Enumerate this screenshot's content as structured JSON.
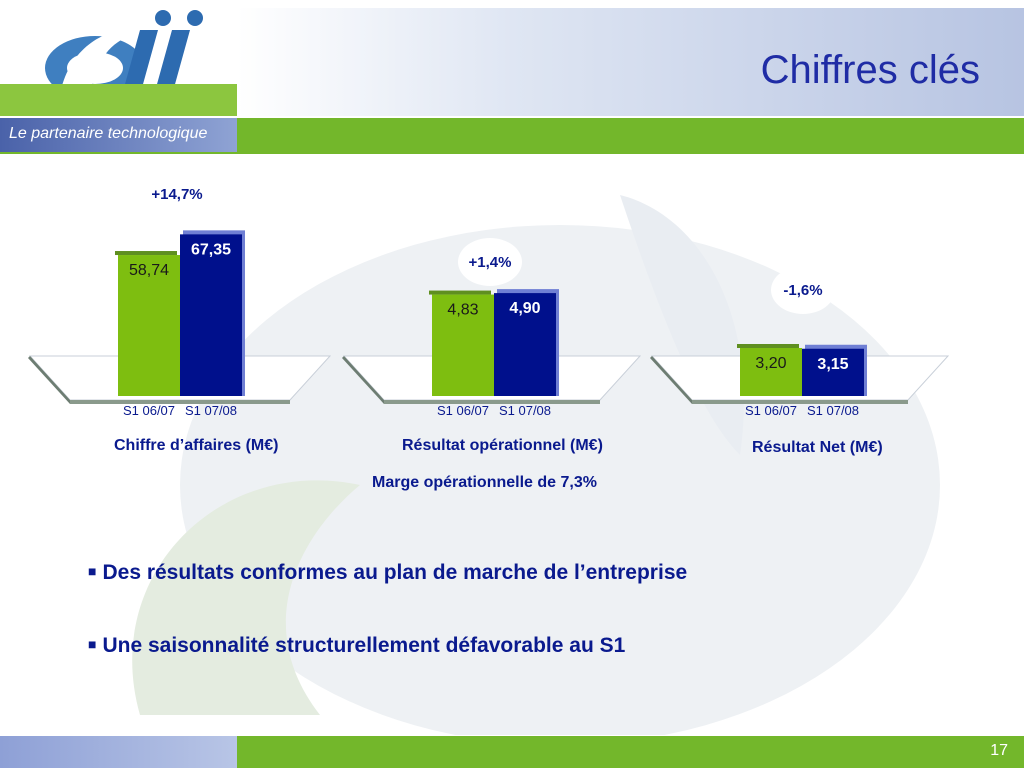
{
  "header": {
    "title": "Chiffres clés",
    "tagline": "Le partenaire technologique",
    "logo_text": "SII"
  },
  "colors": {
    "prev_bar": "#7ebe10",
    "curr_bar": "#00108c",
    "bar_shadow": "#6f7fd4",
    "title": "#1f2ca5",
    "text": "#0a1a8e",
    "brand_green": "#73b72b"
  },
  "chart_data": [
    {
      "type": "bar",
      "categories": [
        "S1 06/07",
        "S1 07/08"
      ],
      "values": [
        58.74,
        67.35
      ],
      "value_labels": [
        "58,74",
        "67,35"
      ],
      "change_label": "+14,7%",
      "title": "Chiffre d’affaires (M€)"
    },
    {
      "type": "bar",
      "categories": [
        "S1 06/07",
        "S1 07/08"
      ],
      "values": [
        4.83,
        4.9
      ],
      "value_labels": [
        "4,83",
        "4,90"
      ],
      "change_label": "+1,4%",
      "title": "Résultat opérationnel (M€)",
      "subtitle": "Marge opérationnelle de 7,3%"
    },
    {
      "type": "bar",
      "categories": [
        "S1 06/07",
        "S1 07/08"
      ],
      "values": [
        3.2,
        3.15
      ],
      "value_labels": [
        "3,20",
        "3,15"
      ],
      "change_label": "-1,6%",
      "title": "Résultat Net (M€)"
    }
  ],
  "bullets": [
    "Des résultats conformes au plan de marche de l’entreprise",
    "Une saisonnalité structurellement défavorable au S1"
  ],
  "footer": {
    "page_number": "17"
  }
}
